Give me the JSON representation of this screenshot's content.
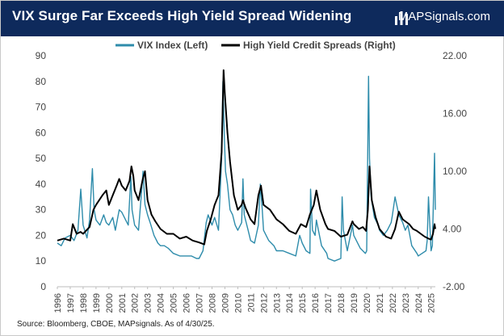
{
  "header": {
    "title": "VIX Surge Far Exceeds High Yield Spread Widening",
    "brand": "MAPSignals.com"
  },
  "source": "Source: Bloomberg, CBOE, MAPsignals. As of  4/30/25.",
  "colors": {
    "header_bg": "#0e2a5c",
    "vix": "#2e8cab",
    "hy": "#000000",
    "text": "#444444"
  },
  "chart_data": {
    "type": "line",
    "legend": "top-center",
    "grid": false,
    "x_ticks": [
      "1996",
      "1997",
      "1998",
      "1999",
      "2000",
      "2001",
      "2002",
      "2003",
      "2004",
      "2005",
      "2006",
      "2007",
      "2008",
      "2009",
      "2010",
      "2011",
      "2012",
      "2013",
      "2014",
      "2015",
      "2016",
      "2017",
      "2018",
      "2019",
      "2020",
      "2021",
      "2022",
      "2023",
      "2024",
      "2025"
    ],
    "xlim": [
      1996,
      2025.33
    ],
    "y_left": {
      "ticks": [
        "0",
        "10",
        "20",
        "30",
        "40",
        "50",
        "60",
        "70",
        "80",
        "90"
      ],
      "lim": [
        0,
        90
      ]
    },
    "y_right": {
      "ticks": [
        "-2.00",
        "4.00",
        "10.00",
        "16.00",
        "22.00"
      ],
      "lim": [
        -2,
        22
      ]
    },
    "series": [
      {
        "name": "VIX Index (Left)",
        "axis": "left",
        "x": [
          1996.0,
          1996.3,
          1996.6,
          1997.0,
          1997.3,
          1997.6,
          1997.82,
          1998.0,
          1998.3,
          1998.5,
          1998.65,
          1998.72,
          1998.85,
          1999.0,
          1999.3,
          1999.6,
          1999.8,
          2000.0,
          2000.3,
          2000.5,
          2000.8,
          2001.0,
          2001.3,
          2001.5,
          2001.7,
          2001.8,
          2002.0,
          2002.3,
          2002.55,
          2002.65,
          2002.8,
          2003.0,
          2003.2,
          2003.5,
          2003.8,
          2004.0,
          2004.3,
          2004.6,
          2005.0,
          2005.5,
          2006.0,
          2006.4,
          2006.8,
          2007.0,
          2007.3,
          2007.55,
          2007.7,
          2008.0,
          2008.2,
          2008.5,
          2008.75,
          2008.85,
          2008.95,
          2009.05,
          2009.2,
          2009.4,
          2009.6,
          2009.8,
          2010.0,
          2010.3,
          2010.4,
          2010.5,
          2010.8,
          2011.0,
          2011.3,
          2011.6,
          2011.75,
          2011.9,
          2012.0,
          2012.4,
          2012.8,
          2013.0,
          2013.5,
          2014.0,
          2014.5,
          2014.8,
          2015.0,
          2015.3,
          2015.6,
          2015.65,
          2015.8,
          2016.0,
          2016.1,
          2016.5,
          2016.9,
          2017.0,
          2017.5,
          2018.0,
          2018.1,
          2018.2,
          2018.5,
          2018.9,
          2019.0,
          2019.5,
          2019.9,
          2020.0,
          2020.15,
          2020.22,
          2020.35,
          2020.6,
          2020.9,
          2021.0,
          2021.3,
          2021.6,
          2021.9,
          2022.0,
          2022.2,
          2022.5,
          2022.8,
          2023.0,
          2023.2,
          2023.5,
          2023.9,
          2024.0,
          2024.3,
          2024.6,
          2024.7,
          2024.8,
          2025.0,
          2025.1,
          2025.27,
          2025.33
        ],
        "values": [
          17,
          16,
          19,
          20,
          18,
          22,
          38,
          24,
          19,
          26,
          40,
          46,
          30,
          26,
          24,
          28,
          25,
          24,
          27,
          22,
          30,
          29,
          26,
          24,
          43,
          30,
          24,
          22,
          38,
          45,
          32,
          28,
          25,
          20,
          17,
          16,
          16,
          15,
          13,
          12,
          12,
          12,
          11,
          11,
          14,
          25,
          28,
          24,
          27,
          22,
          50,
          80,
          60,
          45,
          40,
          30,
          28,
          24,
          22,
          25,
          42,
          28,
          22,
          18,
          17,
          24,
          40,
          30,
          22,
          18,
          16,
          14,
          14,
          13,
          12,
          20,
          17,
          14,
          13,
          38,
          22,
          20,
          26,
          16,
          13,
          11,
          10,
          11,
          35,
          22,
          14,
          24,
          20,
          15,
          13,
          14,
          82,
          50,
          35,
          27,
          24,
          22,
          20,
          22,
          25,
          28,
          35,
          28,
          25,
          22,
          24,
          16,
          13,
          12,
          13,
          14,
          18,
          35,
          14,
          16,
          52,
          30
        ],
        "color": "#2e8cab"
      },
      {
        "name": "High Yield Credit Spreads (Right)",
        "axis": "right",
        "x": [
          1996.0,
          1996.5,
          1997.0,
          1997.2,
          1997.5,
          1997.8,
          1998.0,
          1998.5,
          1998.8,
          1999.0,
          1999.5,
          1999.8,
          2000.0,
          2000.3,
          2000.6,
          2000.8,
          2001.0,
          2001.3,
          2001.6,
          2001.75,
          2001.9,
          2002.0,
          2002.3,
          2002.6,
          2002.8,
          2003.0,
          2003.3,
          2003.6,
          2004.0,
          2004.5,
          2005.0,
          2005.5,
          2006.0,
          2006.5,
          2007.0,
          2007.4,
          2007.6,
          2007.9,
          2008.2,
          2008.5,
          2008.75,
          2008.9,
          2009.0,
          2009.2,
          2009.4,
          2009.7,
          2010.0,
          2010.3,
          2010.4,
          2010.6,
          2011.0,
          2011.3,
          2011.6,
          2011.8,
          2012.0,
          2012.5,
          2013.0,
          2013.5,
          2014.0,
          2014.5,
          2014.9,
          2015.3,
          2015.6,
          2015.9,
          2016.1,
          2016.4,
          2016.8,
          2017.0,
          2017.5,
          2018.0,
          2018.5,
          2018.9,
          2019.0,
          2019.4,
          2019.7,
          2019.95,
          2020.1,
          2020.22,
          2020.4,
          2020.7,
          2021.0,
          2021.5,
          2021.9,
          2022.2,
          2022.5,
          2022.8,
          2023.0,
          2023.3,
          2023.6,
          2023.9,
          2024.2,
          2024.5,
          2024.8,
          2025.0,
          2025.15,
          2025.27,
          2025.33
        ],
        "values": [
          2.8,
          3.0,
          2.8,
          4.5,
          3.5,
          3.7,
          3.5,
          4.2,
          6.0,
          6.5,
          7.5,
          8.0,
          6.5,
          7.5,
          8.5,
          9.2,
          8.5,
          8.0,
          9.0,
          10.5,
          9.5,
          8.0,
          7.0,
          9.0,
          10.0,
          7.0,
          5.5,
          4.8,
          4.0,
          3.5,
          3.5,
          3.0,
          3.2,
          2.8,
          2.6,
          2.4,
          3.8,
          5.0,
          6.5,
          7.5,
          12.0,
          20.5,
          18.0,
          14.0,
          11.0,
          7.5,
          6.0,
          6.5,
          7.0,
          6.2,
          5.0,
          4.5,
          7.5,
          8.5,
          6.5,
          6.0,
          5.0,
          4.5,
          3.8,
          3.5,
          4.5,
          4.2,
          5.5,
          6.5,
          8.0,
          6.0,
          4.5,
          4.0,
          3.8,
          3.2,
          3.4,
          4.8,
          4.5,
          4.0,
          4.2,
          3.8,
          6.0,
          10.5,
          7.0,
          5.2,
          4.0,
          3.2,
          3.0,
          4.0,
          5.8,
          5.0,
          4.8,
          4.5,
          4.0,
          3.8,
          3.5,
          3.2,
          3.0,
          2.9,
          3.5,
          4.5,
          4.0
        ],
        "color": "#000000"
      }
    ]
  }
}
